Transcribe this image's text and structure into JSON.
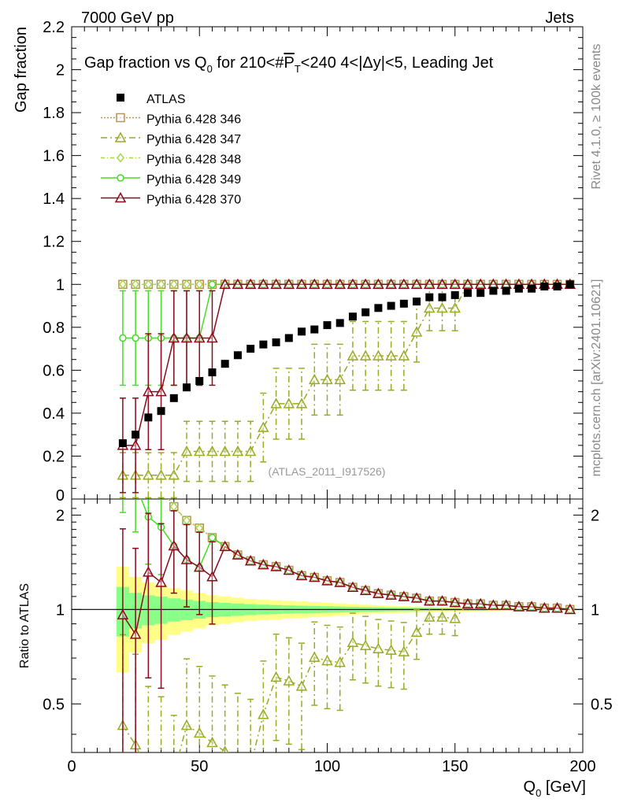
{
  "header": {
    "left": "7000 GeV pp",
    "right": "Jets"
  },
  "side": {
    "rivet": "Rivet 4.1.0, ≥ 100k events",
    "mcplots": "mcplots.cern.ch [arXiv:2401.10621]"
  },
  "chart_data": {
    "type": "scatter",
    "title": "Gap fraction vs Q0 for 210<#PT<240  4<|Δy|<5, Leading Jet",
    "analysis_label": "(ATLAS_2011_I917526)",
    "ylabel": "Gap fraction",
    "ratio_ylabel": "Ratio to ATLAS",
    "xlabel": "Q0 [GeV]",
    "xlim": [
      0,
      200
    ],
    "ylim": [
      0,
      2.2
    ],
    "ratio_ylim": [
      0.35,
      2.25
    ],
    "x_ticks": [
      "0",
      "50",
      "100",
      "150",
      "200"
    ],
    "y_ticks": [
      "0",
      "0.2",
      "0.4",
      "0.6",
      "0.8",
      "1",
      "1.2",
      "1.4",
      "1.6",
      "1.8",
      "2",
      "2.2"
    ],
    "ratio_ticks": [
      "0.5",
      "1",
      "2"
    ],
    "x": [
      20,
      25,
      30,
      35,
      40,
      45,
      50,
      55,
      60,
      65,
      70,
      75,
      80,
      85,
      90,
      95,
      100,
      105,
      110,
      115,
      120,
      125,
      130,
      135,
      140,
      145,
      150,
      155,
      160,
      165,
      170,
      175,
      180,
      185,
      190,
      195
    ],
    "data": {
      "name": "ATLAS",
      "values": [
        0.26,
        0.3,
        0.38,
        0.41,
        0.47,
        0.52,
        0.55,
        0.59,
        0.63,
        0.67,
        0.7,
        0.72,
        0.73,
        0.75,
        0.78,
        0.79,
        0.81,
        0.82,
        0.85,
        0.87,
        0.89,
        0.9,
        0.91,
        0.92,
        0.94,
        0.94,
        0.95,
        0.96,
        0.96,
        0.97,
        0.97,
        0.98,
        0.98,
        0.99,
        0.99,
        1.0
      ]
    },
    "band_outer": [
      0.37,
      0.27,
      0.22,
      0.2,
      0.17,
      0.15,
      0.13,
      0.11,
      0.1,
      0.09,
      0.08,
      0.075,
      0.07,
      0.065,
      0.06,
      0.055,
      0.05,
      0.045,
      0.04,
      0.035,
      0.03,
      0.028,
      0.025,
      0.022,
      0.02,
      0.018,
      0.016,
      0.015,
      0.014,
      0.013,
      0.012,
      0.011,
      0.01,
      0.01,
      0.01,
      0.01
    ],
    "band_inner": [
      0.18,
      0.13,
      0.11,
      0.1,
      0.085,
      0.075,
      0.065,
      0.055,
      0.05,
      0.045,
      0.04,
      0.036,
      0.033,
      0.03,
      0.028,
      0.026,
      0.024,
      0.022,
      0.02,
      0.018,
      0.016,
      0.014,
      0.013,
      0.012,
      0.011,
      0.01,
      0.009,
      0.008,
      0.008,
      0.007,
      0.007,
      0.006,
      0.006,
      0.006,
      0.005,
      0.005
    ],
    "series": [
      {
        "name": "Pythia 6.428 346",
        "color": "#b8925a",
        "marker": "square-open",
        "dash": "2,2",
        "values": [
          1,
          1,
          1,
          1,
          1,
          1,
          1,
          1,
          1,
          1,
          1,
          1,
          1,
          1,
          1,
          1,
          1,
          1,
          1,
          1,
          1,
          1,
          1,
          1,
          1,
          1,
          1,
          1,
          1,
          1,
          1,
          1,
          1,
          1,
          1,
          1
        ],
        "errors": [
          0,
          0,
          0,
          0,
          0,
          0,
          0,
          0,
          0,
          0,
          0,
          0,
          0,
          0,
          0,
          0,
          0,
          0,
          0,
          0,
          0,
          0,
          0,
          0,
          0,
          0,
          0,
          0,
          0,
          0,
          0,
          0,
          0,
          0,
          0,
          0
        ]
      },
      {
        "name": "Pythia 6.428 347",
        "color": "#9aaa24",
        "marker": "triangle-open",
        "dash": "8,4,2,4",
        "values": [
          0.111,
          0.111,
          0.111,
          0.111,
          0.111,
          0.222,
          0.222,
          0.222,
          0.222,
          0.222,
          0.222,
          0.333,
          0.444,
          0.444,
          0.444,
          0.556,
          0.556,
          0.556,
          0.667,
          0.667,
          0.667,
          0.667,
          0.667,
          0.778,
          0.889,
          0.889,
          0.889,
          1,
          1,
          1,
          1,
          1,
          1,
          1,
          1,
          1
        ],
        "errors": [
          0.105,
          0.105,
          0.105,
          0.105,
          0.105,
          0.14,
          0.14,
          0.14,
          0.14,
          0.14,
          0.14,
          0.16,
          0.165,
          0.165,
          0.165,
          0.165,
          0.165,
          0.165,
          0.16,
          0.16,
          0.16,
          0.16,
          0.16,
          0.14,
          0.105,
          0.105,
          0.105,
          0,
          0,
          0,
          0,
          0,
          0,
          0,
          0,
          0
        ]
      },
      {
        "name": "Pythia 6.428 348",
        "color": "#a8d84a",
        "marker": "diamond-open",
        "dash": "5,3,1,3",
        "values": [
          1,
          1,
          1,
          1,
          1,
          1,
          1,
          1,
          1,
          1,
          1,
          1,
          1,
          1,
          1,
          1,
          1,
          1,
          1,
          1,
          1,
          1,
          1,
          1,
          1,
          1,
          1,
          1,
          1,
          1,
          1,
          1,
          1,
          1,
          1,
          1
        ],
        "errors": [
          0,
          0,
          0,
          0,
          0,
          0,
          0,
          0,
          0,
          0,
          0,
          0,
          0,
          0,
          0,
          0,
          0,
          0,
          0,
          0,
          0,
          0,
          0,
          0,
          0,
          0,
          0,
          0,
          0,
          0,
          0,
          0,
          0,
          0,
          0,
          0
        ]
      },
      {
        "name": "Pythia 6.428 349",
        "color": "#44dd22",
        "marker": "circle-open",
        "dash": "",
        "values": [
          0.75,
          0.75,
          0.75,
          0.75,
          0.75,
          0.75,
          0.75,
          1,
          1,
          1,
          1,
          1,
          1,
          1,
          1,
          1,
          1,
          1,
          1,
          1,
          1,
          1,
          1,
          1,
          1,
          1,
          1,
          1,
          1,
          1,
          1,
          1,
          1,
          1,
          1,
          1
        ],
        "errors": [
          0.22,
          0.22,
          0.22,
          0.22,
          0.22,
          0.22,
          0.22,
          0,
          0,
          0,
          0,
          0,
          0,
          0,
          0,
          0,
          0,
          0,
          0,
          0,
          0,
          0,
          0,
          0,
          0,
          0,
          0,
          0,
          0,
          0,
          0,
          0,
          0,
          0,
          0,
          0
        ]
      },
      {
        "name": "Pythia 6.428 370",
        "color": "#8b0a1e",
        "marker": "triangle-open",
        "dash": "",
        "values": [
          0.25,
          0.25,
          0.5,
          0.5,
          0.75,
          0.75,
          0.75,
          0.75,
          1,
          1,
          1,
          1,
          1,
          1,
          1,
          1,
          1,
          1,
          1,
          1,
          1,
          1,
          1,
          1,
          1,
          1,
          1,
          1,
          1,
          1,
          1,
          1,
          1,
          1,
          1,
          1
        ],
        "errors": [
          0.22,
          0.22,
          0.27,
          0.27,
          0.22,
          0.22,
          0.22,
          0.22,
          0,
          0,
          0,
          0,
          0,
          0,
          0,
          0,
          0,
          0,
          0,
          0,
          0,
          0,
          0,
          0,
          0,
          0,
          0,
          0,
          0,
          0,
          0,
          0,
          0,
          0,
          0,
          0
        ]
      }
    ]
  }
}
